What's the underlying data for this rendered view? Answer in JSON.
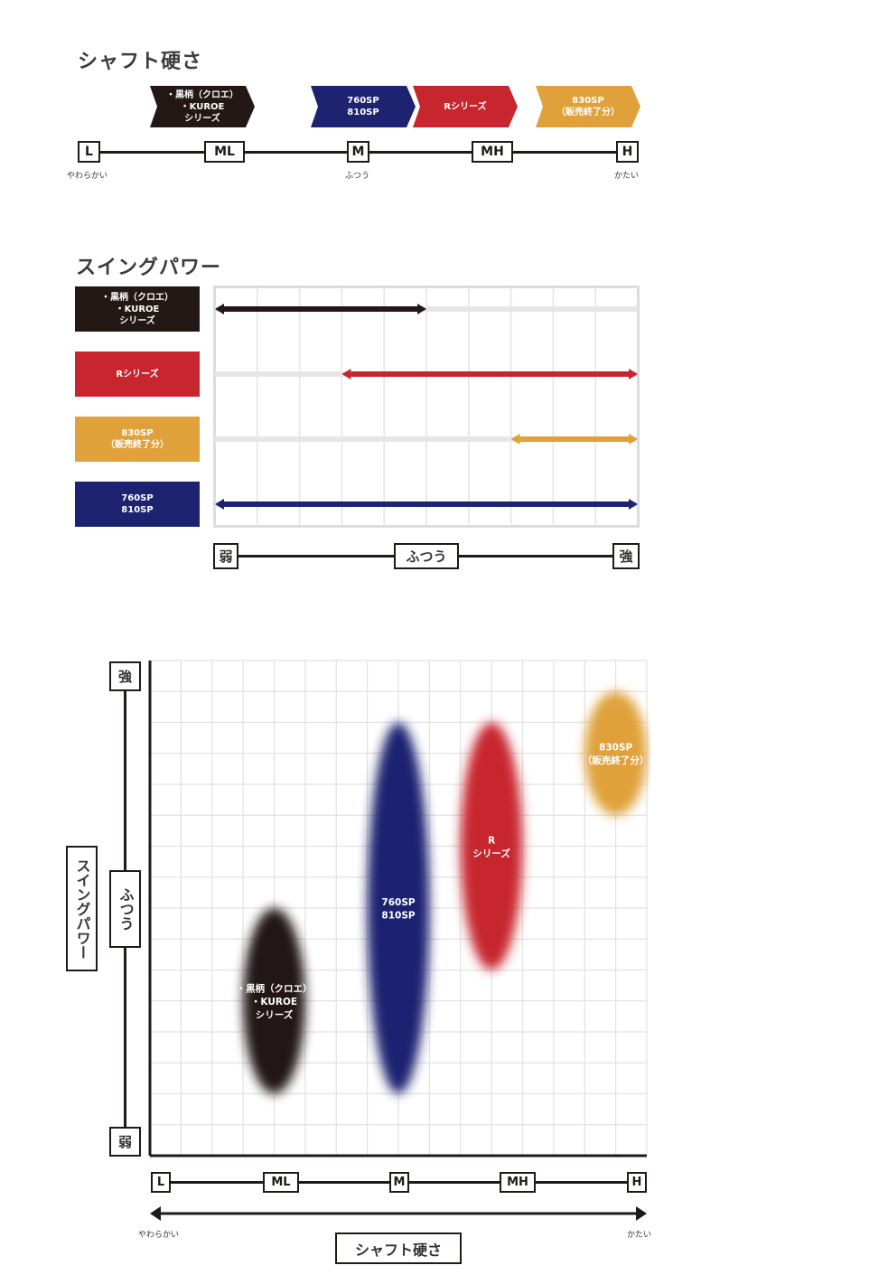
{
  "section1": {
    "title": "シャフト硬さ",
    "tags": [
      {
        "label": "・黒柄（クロエ）\n・KUROE\nシリーズ",
        "color": "#231815"
      },
      {
        "label": "760SP\n810SP",
        "color": "#1d2271"
      },
      {
        "label": "Rシリーズ",
        "color": "#c8262e"
      },
      {
        "label": "830SP\n（販売終了分）",
        "color": "#e0a13b"
      }
    ],
    "scale": [
      "L",
      "ML",
      "M",
      "MH",
      "H"
    ],
    "scale_sub": {
      "left": "やわらかい",
      "mid": "ふつう",
      "right": "かたい"
    }
  },
  "section2": {
    "title": "スイングパワー",
    "legend": [
      {
        "label": "・黒柄（クロエ）\n・KUROE\nシリーズ",
        "color": "#231815"
      },
      {
        "label": "Rシリーズ",
        "color": "#c8262e"
      },
      {
        "label": "830SP\n（販売終了分）",
        "color": "#e0a13b"
      },
      {
        "label": "760SP\n810SP",
        "color": "#1d2271"
      }
    ],
    "scale": {
      "weak": "弱",
      "normal": "ふつう",
      "strong": "強"
    }
  },
  "section3": {
    "y_label": "スイングパワー",
    "y_ticks": {
      "strong": "強",
      "normal": "ふつう",
      "weak": "弱"
    },
    "x_ticks": [
      "L",
      "ML",
      "M",
      "MH",
      "H"
    ],
    "x_sub": {
      "left": "やわらかい",
      "right": "かたい"
    },
    "x_label": "シャフト硬さ"
  },
  "chart_data": [
    {
      "type": "bar",
      "title": "シャフト硬さ",
      "axis": [
        "L",
        "ML",
        "M",
        "MH",
        "H"
      ],
      "series": [
        {
          "name": "・黒柄（クロエ）・KUROE シリーズ",
          "value": "ML"
        },
        {
          "name": "760SP 810SP",
          "value": "M"
        },
        {
          "name": "Rシリーズ",
          "value": "MH"
        },
        {
          "name": "830SP（販売終了分）",
          "value": "H"
        }
      ]
    },
    {
      "type": "bar",
      "title": "スイングパワー",
      "axis_labels": [
        "弱",
        "ふつう",
        "強"
      ],
      "xlim": [
        0,
        10
      ],
      "series": [
        {
          "name": "・黒柄（クロエ）・KUROE シリーズ",
          "range": [
            0,
            5
          ]
        },
        {
          "name": "Rシリーズ",
          "range": [
            3,
            10
          ]
        },
        {
          "name": "830SP（販売終了分）",
          "range": [
            7,
            10
          ]
        },
        {
          "name": "760SP 810SP",
          "range": [
            0,
            10
          ]
        }
      ]
    },
    {
      "type": "scatter",
      "xlabel": "シャフト硬さ",
      "ylabel": "スイングパワー",
      "x_ticks": [
        "L",
        "ML",
        "M",
        "MH",
        "H"
      ],
      "xlim": [
        0,
        16
      ],
      "ylim": [
        0,
        16
      ],
      "series": [
        {
          "name": "・黒柄（クロエ）\n・KUROE\nシリーズ",
          "color": "#231815",
          "x": 4,
          "y": 5,
          "rx": 1,
          "ry": 3
        },
        {
          "name": "760SP\n810SP",
          "color": "#1d2271",
          "x": 8,
          "y": 8,
          "rx": 1,
          "ry": 6
        },
        {
          "name": "R\nシリーズ",
          "color": "#c8262e",
          "x": 11,
          "y": 10,
          "rx": 1,
          "ry": 4
        },
        {
          "name": "830SP\n（販売終了分）",
          "color": "#e0a13b",
          "x": 15,
          "y": 13,
          "rx": 1,
          "ry": 2
        }
      ]
    }
  ]
}
